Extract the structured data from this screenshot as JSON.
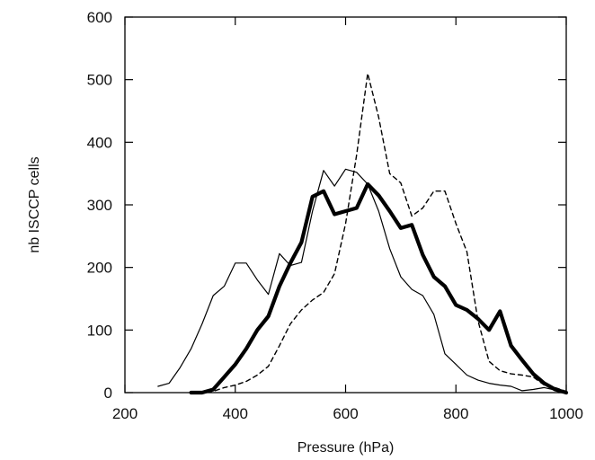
{
  "chart_data": {
    "type": "line",
    "title": "",
    "xlabel": "Pressure (hPa)",
    "ylabel": "nb ISCCP cells",
    "xlim": [
      200,
      1000
    ],
    "ylim": [
      0,
      600
    ],
    "xticks": [
      200,
      400,
      600,
      800,
      1000
    ],
    "yticks": [
      0,
      100,
      200,
      300,
      400,
      500,
      600
    ],
    "grid": false,
    "legend": "none",
    "series": [
      {
        "style": "thin-solid",
        "points": [
          [
            260,
            10
          ],
          [
            280,
            15
          ],
          [
            300,
            40
          ],
          [
            320,
            70
          ],
          [
            340,
            110
          ],
          [
            360,
            155
          ],
          [
            380,
            170
          ],
          [
            400,
            207
          ],
          [
            420,
            207
          ],
          [
            440,
            180
          ],
          [
            460,
            157
          ],
          [
            480,
            222
          ],
          [
            500,
            203
          ],
          [
            520,
            208
          ],
          [
            540,
            290
          ],
          [
            560,
            355
          ],
          [
            580,
            330
          ],
          [
            600,
            357
          ],
          [
            620,
            352
          ],
          [
            640,
            333
          ],
          [
            660,
            290
          ],
          [
            680,
            230
          ],
          [
            700,
            185
          ],
          [
            720,
            165
          ],
          [
            740,
            155
          ],
          [
            760,
            125
          ],
          [
            780,
            62
          ],
          [
            800,
            45
          ],
          [
            820,
            28
          ],
          [
            840,
            20
          ],
          [
            860,
            15
          ],
          [
            880,
            12
          ],
          [
            900,
            10
          ],
          [
            920,
            3
          ],
          [
            940,
            5
          ],
          [
            960,
            8
          ],
          [
            980,
            4
          ],
          [
            1000,
            2
          ]
        ]
      },
      {
        "style": "thick-solid",
        "points": [
          [
            320,
            0
          ],
          [
            340,
            0
          ],
          [
            360,
            5
          ],
          [
            380,
            25
          ],
          [
            400,
            45
          ],
          [
            420,
            70
          ],
          [
            440,
            100
          ],
          [
            460,
            122
          ],
          [
            480,
            170
          ],
          [
            500,
            207
          ],
          [
            520,
            240
          ],
          [
            540,
            313
          ],
          [
            560,
            322
          ],
          [
            580,
            285
          ],
          [
            600,
            290
          ],
          [
            620,
            295
          ],
          [
            640,
            333
          ],
          [
            660,
            315
          ],
          [
            680,
            290
          ],
          [
            700,
            263
          ],
          [
            720,
            268
          ],
          [
            740,
            220
          ],
          [
            760,
            185
          ],
          [
            780,
            170
          ],
          [
            800,
            140
          ],
          [
            820,
            132
          ],
          [
            840,
            118
          ],
          [
            860,
            100
          ],
          [
            880,
            130
          ],
          [
            900,
            75
          ],
          [
            920,
            52
          ],
          [
            940,
            30
          ],
          [
            960,
            15
          ],
          [
            980,
            5
          ],
          [
            1000,
            0
          ]
        ]
      },
      {
        "style": "dashed",
        "points": [
          [
            320,
            0
          ],
          [
            360,
            2
          ],
          [
            380,
            8
          ],
          [
            400,
            12
          ],
          [
            420,
            18
          ],
          [
            440,
            28
          ],
          [
            460,
            42
          ],
          [
            480,
            75
          ],
          [
            500,
            110
          ],
          [
            520,
            132
          ],
          [
            540,
            148
          ],
          [
            560,
            160
          ],
          [
            580,
            190
          ],
          [
            600,
            270
          ],
          [
            620,
            380
          ],
          [
            640,
            510
          ],
          [
            660,
            440
          ],
          [
            680,
            350
          ],
          [
            700,
            335
          ],
          [
            720,
            282
          ],
          [
            740,
            295
          ],
          [
            760,
            322
          ],
          [
            780,
            322
          ],
          [
            800,
            270
          ],
          [
            820,
            225
          ],
          [
            840,
            115
          ],
          [
            860,
            50
          ],
          [
            880,
            35
          ],
          [
            900,
            30
          ],
          [
            920,
            28
          ],
          [
            940,
            25
          ],
          [
            960,
            12
          ],
          [
            980,
            8
          ],
          [
            1000,
            2
          ]
        ]
      }
    ]
  }
}
